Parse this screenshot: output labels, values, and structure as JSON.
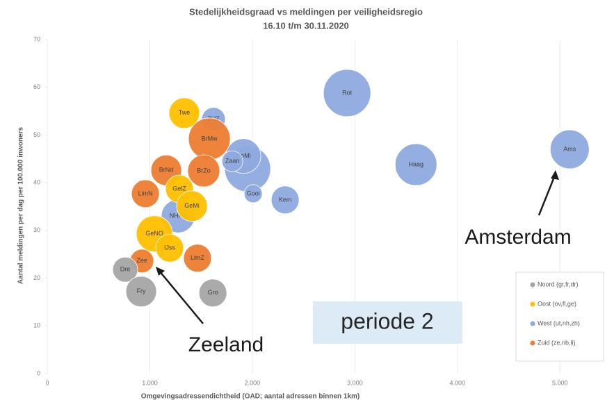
{
  "chart_data": {
    "type": "bubble",
    "title": "Stedelijkheidsgraad vs meldingen per veiligheidsregio",
    "subtitle": "16.10 t/m 30.11.2020",
    "x_label": "Omgevingsadressendichtheid (OAD; aantal adressen binnen 1km)",
    "y_label": "Aantal meldingen per dag per 100.000 inwoners",
    "xlim": [
      0,
      5500
    ],
    "ylim": [
      0,
      70
    ],
    "xticks": [
      0,
      {
        "value": 1000,
        "label": "1.000"
      },
      {
        "value": 2000,
        "label": "2.000"
      },
      {
        "value": 3000,
        "label": "3.000"
      },
      {
        "value": 4000,
        "label": "4.000"
      },
      {
        "value": 5000,
        "label": "5.000"
      }
    ],
    "yticks": [
      0,
      10,
      20,
      30,
      40,
      50,
      60,
      70
    ],
    "grid": true,
    "legend": "bottom-right",
    "series": [
      {
        "name": "West (ut,nh,zh)",
        "color": "#8eaadf",
        "labels": [
          "Rot",
          "Haag",
          "Ams",
          "Utr",
          "HoMi",
          "Zaan",
          "ZHZ",
          "Kem",
          "Gooi",
          "NHNd"
        ],
        "x": [
          2924,
          3596,
          5095,
          1954,
          1913,
          1805,
          1621,
          2320,
          2008,
          1275
        ],
        "values": [
          58.8,
          43.8,
          47.0,
          42.9,
          45.6,
          44.5,
          53.3,
          36.4,
          37.7,
          33.0
        ],
        "sizes": [
          34,
          30,
          28,
          33,
          25,
          15,
          17,
          20,
          13,
          24
        ]
      },
      {
        "name": "Zuid (ze,nb,li)",
        "color": "#ed7d31",
        "labels": [
          "BrMw",
          "BrZo",
          "BrNd",
          "LimN",
          "LimZ",
          "Zee"
        ],
        "x": [
          1581,
          1526,
          1160,
          957,
          1465,
          923
        ],
        "values": [
          49.2,
          42.5,
          42.6,
          37.7,
          24.2,
          23.6
        ],
        "sizes": [
          30,
          23,
          22,
          20,
          20,
          17
        ]
      },
      {
        "name": "Oost (ov,fl,ge)",
        "color": "#ffc000",
        "labels": [
          "Twe",
          "GelZ",
          "GeMi",
          "GeNO",
          "IJss"
        ],
        "x": [
          1336,
          1289,
          1411,
          1045,
          1194
        ],
        "values": [
          54.6,
          38.7,
          35.1,
          29.3,
          26.3
        ],
        "sizes": [
          22,
          20,
          22,
          26,
          20
        ]
      },
      {
        "name": "Noord (gr,fr,dr)",
        "color": "#a5a5a5",
        "labels": [
          "Dre",
          "Fry",
          "Gro"
        ],
        "x": [
          760,
          916,
          1615
        ],
        "values": [
          21.8,
          17.2,
          16.9
        ],
        "sizes": [
          18,
          22,
          20
        ]
      }
    ],
    "legend_order": [
      3,
      2,
      0,
      1
    ],
    "annotations": [
      "Amsterdam",
      "Zeeland",
      "periode 2"
    ]
  }
}
